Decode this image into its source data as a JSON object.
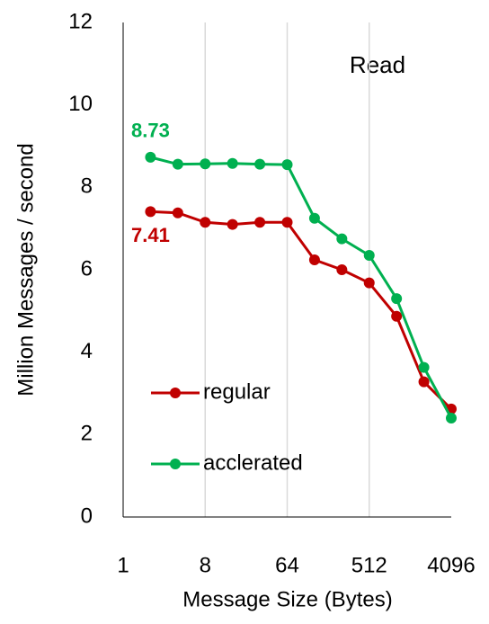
{
  "chart_data": {
    "type": "line",
    "annotation": "Read",
    "x_label": "Message Size (Bytes)",
    "y_label": "Million Messages / second",
    "x": [
      2,
      4,
      8,
      16,
      32,
      64,
      128,
      256,
      512,
      1024,
      2048,
      4096
    ],
    "series": [
      {
        "name": "regular",
        "color": "#c00000",
        "values": [
          7.41,
          7.38,
          7.15,
          7.1,
          7.15,
          7.15,
          6.24,
          6.0,
          5.68,
          4.87,
          3.28,
          2.62
        ],
        "value_labels": [
          "7.41",
          null,
          null,
          null,
          null,
          null,
          null,
          null,
          null,
          null,
          null,
          null
        ]
      },
      {
        "name": "acclerated",
        "color": "#00b050",
        "values": [
          8.73,
          8.56,
          8.57,
          8.58,
          8.56,
          8.55,
          7.25,
          6.75,
          6.35,
          5.3,
          3.63,
          2.4
        ],
        "value_labels": [
          "8.73",
          null,
          null,
          null,
          null,
          null,
          null,
          null,
          null,
          null,
          null,
          null
        ]
      }
    ],
    "xlim": [
      1,
      4096
    ],
    "xticks": [
      1,
      8,
      64,
      512,
      4096
    ],
    "xscale": "log",
    "ylim": [
      0,
      12
    ],
    "yticks": [
      0,
      2,
      4,
      6,
      8,
      10,
      12
    ],
    "grid": "x",
    "legend": "lower left"
  }
}
